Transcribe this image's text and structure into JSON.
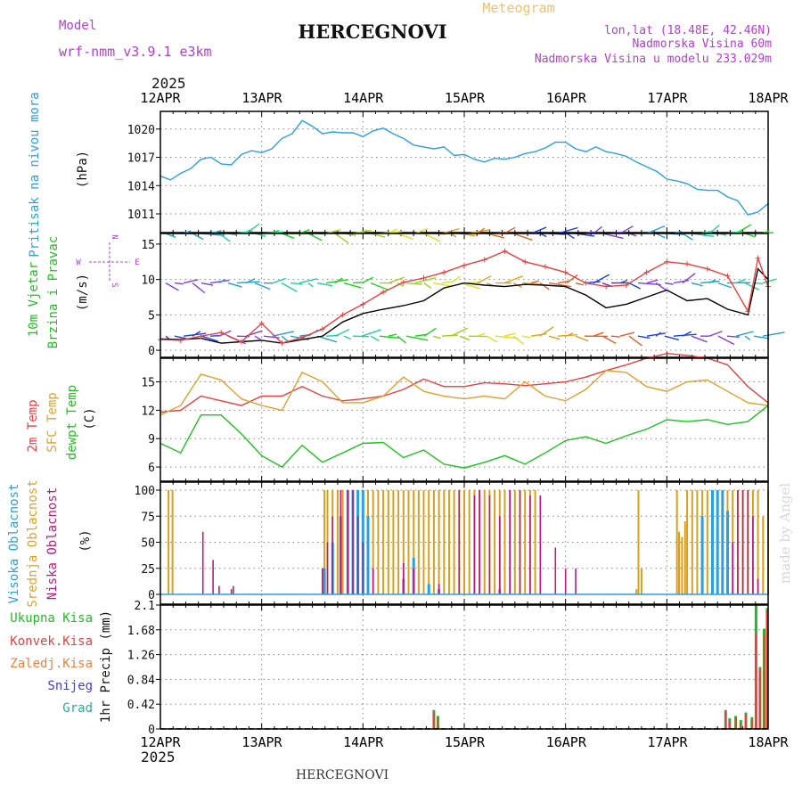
{
  "header": {
    "model_label": "Model",
    "model_name": "wrf-nmm_v3.9.1 e3km",
    "title": "HERCEGNOVI",
    "meteogram": "Meteogram",
    "lonlat": "lon,lat (18.48E, 42.46N)",
    "elevation": "Nadmorska Visina 60m",
    "model_elevation": "Nadmorska Visina u modelu 233.029m",
    "bottom_title": "HERCEGNOVI",
    "watermark": "made by Angel",
    "year_top": "2025",
    "year_bottom": "2025"
  },
  "colors": {
    "pressure": "#2aa0e0",
    "t2m": "#e84040",
    "sfc": "#e0a030",
    "dew": "#20c020",
    "high_cloud": "#2aa0e0",
    "mid_cloud": "#d8a020",
    "low_cloud": "#c01880",
    "total_precip": "#30b030",
    "conv_precip": "#e84040",
    "frozen": "#f08040",
    "snow": "#4040d0",
    "grad": "#20b0a0",
    "wind_speed": "#000000",
    "gust": "#e84040",
    "label_purple": "#b040d0",
    "meteogram_orange": "#f0c070"
  },
  "chart_data": [
    {
      "type": "line",
      "id": "pressure",
      "ylabel_lines": [
        "Pritisak na nivou mora",
        "(hPa)"
      ],
      "x_labels": [
        "12APR",
        "13APR",
        "14APR",
        "15APR",
        "16APR",
        "17APR",
        "18APR"
      ],
      "x_range": [
        0,
        6
      ],
      "ylim": [
        1009.3,
        1021.4
      ],
      "yticks": [
        1011,
        1014,
        1017,
        1020
      ],
      "series": [
        {
          "name": "Pritisak",
          "x": [
            0,
            0.1,
            0.2,
            0.3,
            0.4,
            0.5,
            0.6,
            0.7,
            0.8,
            0.9,
            1.0,
            1.1,
            1.2,
            1.3,
            1.4,
            1.5,
            1.6,
            1.7,
            1.8,
            1.9,
            2.0,
            2.1,
            2.2,
            2.3,
            2.4,
            2.5,
            2.6,
            2.7,
            2.8,
            2.9,
            3.0,
            3.1,
            3.2,
            3.3,
            3.4,
            3.5,
            3.6,
            3.7,
            3.8,
            3.9,
            4.0,
            4.1,
            4.2,
            4.3,
            4.4,
            4.5,
            4.6,
            4.7,
            4.8,
            4.9,
            5.0,
            5.1,
            5.2,
            5.3,
            5.4,
            5.5,
            5.6,
            5.7,
            5.8,
            5.9,
            6.0
          ],
          "values": [
            1015.0,
            1014.6,
            1015.3,
            1015.8,
            1016.8,
            1017.0,
            1016.3,
            1016.2,
            1017.3,
            1017.7,
            1017.5,
            1017.9,
            1019.0,
            1019.5,
            1020.9,
            1020.3,
            1019.5,
            1019.7,
            1019.6,
            1019.6,
            1019.2,
            1019.8,
            1020.1,
            1019.5,
            1019.0,
            1018.3,
            1018.1,
            1017.9,
            1018.1,
            1017.2,
            1017.3,
            1016.8,
            1016.5,
            1016.9,
            1016.8,
            1017.0,
            1017.4,
            1017.6,
            1018.0,
            1018.6,
            1018.6,
            1017.9,
            1017.6,
            1018.1,
            1017.6,
            1017.4,
            1017.1,
            1016.5,
            1016.0,
            1015.5,
            1014.7,
            1014.5,
            1014.2,
            1013.6,
            1013.5,
            1013.5,
            1012.8,
            1012.4,
            1010.9,
            1011.2,
            1012.1
          ]
        }
      ]
    },
    {
      "type": "line",
      "id": "wind",
      "ylabel_lines": [
        "10m Vjetar",
        "Brzina i Pravac",
        "(m/s)"
      ],
      "compass": {
        "n": "N",
        "s": "S",
        "w": "W",
        "e": "E"
      },
      "x_range": [
        0,
        6
      ],
      "ylim": [
        -1,
        16.5
      ],
      "yticks": [
        0,
        5,
        10,
        15
      ],
      "arrow_rows": [
        2,
        9.5,
        16.5
      ],
      "series": [
        {
          "name": "Brzina",
          "x": [
            0,
            0.2,
            0.4,
            0.6,
            0.8,
            1.0,
            1.2,
            1.4,
            1.6,
            1.8,
            2.0,
            2.2,
            2.4,
            2.6,
            2.8,
            3.0,
            3.2,
            3.4,
            3.6,
            3.8,
            4.0,
            4.2,
            4.4,
            4.6,
            4.8,
            5.0,
            5.2,
            5.4,
            5.6,
            5.8,
            5.9,
            6.0
          ],
          "values": [
            1.6,
            1.5,
            1.7,
            1.0,
            1.2,
            1.4,
            1.0,
            1.5,
            2.0,
            4.0,
            5.2,
            5.8,
            6.3,
            7.0,
            8.8,
            9.5,
            9.2,
            9.0,
            9.3,
            9.2,
            9.0,
            7.8,
            6.0,
            6.5,
            7.5,
            8.5,
            7.0,
            7.3,
            5.8,
            5.0,
            11.5,
            10.0
          ]
        },
        {
          "name": "Udari",
          "x": [
            0,
            0.2,
            0.4,
            0.6,
            0.8,
            1.0,
            1.2,
            1.4,
            1.6,
            1.8,
            2.0,
            2.2,
            2.4,
            2.6,
            2.8,
            3.0,
            3.2,
            3.4,
            3.6,
            3.8,
            4.0,
            4.2,
            4.4,
            4.6,
            4.8,
            5.0,
            5.2,
            5.4,
            5.6,
            5.8,
            5.9,
            6.0
          ],
          "values": [
            1.5,
            1.4,
            2.0,
            2.5,
            1.2,
            3.8,
            1.0,
            1.8,
            3.0,
            5.0,
            6.5,
            8.2,
            9.6,
            10.2,
            11.0,
            12.0,
            12.8,
            14.0,
            12.5,
            11.8,
            11.0,
            9.5,
            9.0,
            9.2,
            11.0,
            12.5,
            12.2,
            11.5,
            10.5,
            5.5,
            13.0,
            9.0
          ]
        }
      ]
    },
    {
      "type": "line",
      "id": "temperature",
      "ylabel_lines": [
        "2m Temp",
        "SFC Temp",
        "dewpt Temp",
        "(C)"
      ],
      "x_range": [
        0,
        6
      ],
      "ylim": [
        4.5,
        17.5
      ],
      "yticks": [
        6,
        9,
        12,
        15
      ],
      "series": [
        {
          "name": "2m Temp",
          "x": [
            0,
            0.2,
            0.4,
            0.6,
            0.8,
            1.0,
            1.2,
            1.4,
            1.6,
            1.8,
            2.0,
            2.2,
            2.4,
            2.6,
            2.8,
            3.0,
            3.2,
            3.4,
            3.6,
            3.8,
            4.0,
            4.2,
            4.4,
            4.6,
            4.8,
            5.0,
            5.2,
            5.4,
            5.6,
            5.8,
            6.0
          ],
          "values": [
            11.8,
            12.0,
            13.5,
            13.0,
            12.5,
            13.5,
            13.5,
            14.5,
            13.5,
            13.0,
            13.2,
            13.5,
            14.2,
            15.3,
            14.5,
            14.5,
            14.9,
            14.8,
            14.6,
            14.8,
            15.0,
            15.5,
            16.2,
            16.8,
            17.5,
            18.0,
            17.8,
            17.5,
            16.8,
            14.5,
            12.8
          ]
        },
        {
          "name": "SFC Temp",
          "x": [
            0,
            0.2,
            0.4,
            0.6,
            0.8,
            1.0,
            1.2,
            1.4,
            1.6,
            1.8,
            2.0,
            2.2,
            2.4,
            2.6,
            2.8,
            3.0,
            3.2,
            3.4,
            3.6,
            3.8,
            4.0,
            4.2,
            4.4,
            4.6,
            4.8,
            5.0,
            5.2,
            5.4,
            5.6,
            5.8,
            6.0
          ],
          "values": [
            11.5,
            12.5,
            15.8,
            15.2,
            13.2,
            12.5,
            12.0,
            16.0,
            15.0,
            12.8,
            12.8,
            13.5,
            15.5,
            14.0,
            13.5,
            13.2,
            13.5,
            13.2,
            15.0,
            13.5,
            13.0,
            14.2,
            16.2,
            16.0,
            14.5,
            14.0,
            15.0,
            15.2,
            14.0,
            12.8,
            12.5
          ]
        },
        {
          "name": "dewpt Temp",
          "x": [
            0,
            0.2,
            0.4,
            0.6,
            0.8,
            1.0,
            1.2,
            1.4,
            1.6,
            1.8,
            2.0,
            2.2,
            2.4,
            2.6,
            2.8,
            3.0,
            3.2,
            3.4,
            3.6,
            3.8,
            4.0,
            4.2,
            4.4,
            4.6,
            4.8,
            5.0,
            5.2,
            5.4,
            5.6,
            5.8,
            6.0
          ],
          "values": [
            8.5,
            7.5,
            11.5,
            11.5,
            9.5,
            7.2,
            6.0,
            8.3,
            6.5,
            7.5,
            8.5,
            8.6,
            7.0,
            7.8,
            6.3,
            5.9,
            6.5,
            7.2,
            6.3,
            7.5,
            8.8,
            9.2,
            8.5,
            9.3,
            10.0,
            11.0,
            10.8,
            11.0,
            10.5,
            10.8,
            12.5
          ]
        }
      ]
    },
    {
      "type": "bar",
      "id": "clouds",
      "ylabel_lines": [
        "Visoka Oblacnost",
        "Srednja Oblacnost",
        "Niska Oblacnost",
        "(%)"
      ],
      "x_range": [
        0,
        6
      ],
      "ylim": [
        0,
        100
      ],
      "yticks": [
        0,
        25,
        50,
        75,
        100
      ],
      "series": [
        {
          "name": "Srednja",
          "x": [
            0.08,
            0.12,
            1.6,
            1.62,
            1.65,
            1.7,
            1.75,
            1.8,
            1.85,
            1.9,
            1.95,
            2.0,
            2.05,
            2.1,
            2.15,
            2.2,
            2.25,
            2.3,
            2.35,
            2.4,
            2.45,
            2.5,
            2.55,
            2.6,
            2.65,
            2.7,
            2.75,
            2.8,
            2.85,
            2.9,
            2.95,
            3.0,
            3.05,
            3.1,
            3.15,
            3.2,
            3.25,
            3.3,
            3.35,
            3.4,
            3.45,
            3.5,
            3.55,
            3.6,
            3.65,
            3.7,
            4.7,
            4.72,
            4.75,
            5.1,
            5.12,
            5.15,
            5.18,
            5.2,
            5.25,
            5.3,
            5.35,
            5.4,
            5.45,
            5.5,
            5.55,
            5.6,
            5.65,
            5.7,
            5.75,
            5.8,
            5.85,
            5.9,
            5.95,
            6.0
          ],
          "values": [
            100,
            100,
            25,
            100,
            100,
            100,
            100,
            100,
            100,
            100,
            100,
            100,
            100,
            100,
            100,
            100,
            100,
            100,
            100,
            100,
            100,
            100,
            100,
            100,
            100,
            100,
            100,
            100,
            100,
            100,
            100,
            100,
            100,
            100,
            100,
            100,
            100,
            100,
            100,
            100,
            100,
            100,
            100,
            100,
            100,
            100,
            5,
            100,
            25,
            100,
            60,
            55,
            70,
            100,
            100,
            100,
            100,
            100,
            100,
            100,
            100,
            100,
            100,
            100,
            100,
            100,
            100,
            100,
            75,
            100
          ]
        },
        {
          "name": "Visoka",
          "x": [
            1.62,
            1.7,
            1.78,
            1.85,
            1.9,
            1.95,
            2.0,
            2.05,
            2.4,
            2.5,
            2.65,
            2.75,
            3.35,
            5.35,
            5.45,
            5.5,
            5.55,
            5.6
          ],
          "values": [
            25,
            50,
            75,
            100,
            100,
            100,
            100,
            75,
            15,
            35,
            10,
            5,
            5,
            75,
            100,
            100,
            100,
            80
          ]
        },
        {
          "name": "Niska",
          "x": [
            0.42,
            0.52,
            0.58,
            0.7,
            0.72,
            1.6,
            1.65,
            1.7,
            1.78,
            1.85,
            1.9,
            1.95,
            2.0,
            2.1,
            2.4,
            2.5,
            2.75,
            2.95,
            3.1,
            3.15,
            3.25,
            3.35,
            3.45,
            3.55,
            3.65,
            3.75,
            3.9,
            4.0,
            4.1,
            5.65,
            5.7,
            5.75,
            5.8,
            5.85,
            5.9
          ],
          "values": [
            60,
            33,
            8,
            5,
            8,
            25,
            50,
            75,
            100,
            100,
            100,
            75,
            50,
            25,
            30,
            25,
            10,
            100,
            95,
            100,
            95,
            75,
            100,
            100,
            95,
            95,
            45,
            25,
            25,
            50,
            100,
            100,
            100,
            75,
            15
          ]
        }
      ]
    },
    {
      "type": "bar",
      "id": "precip",
      "ylabel_lines": [
        "1hr Precip (mm)"
      ],
      "legend": [
        "Ukupna Kisa",
        "Konvek.Kisa",
        "Zaledj.Kisa",
        "Snijeg",
        "Grad"
      ],
      "x_range": [
        0,
        6
      ],
      "ylim": [
        0,
        2.1
      ],
      "yticks": [
        0,
        0.42,
        0.84,
        1.26,
        1.68,
        2.1
      ],
      "series": [
        {
          "name": "Ukupna Kisa",
          "x": [
            2.7,
            2.74,
            5.58,
            5.62,
            5.68,
            5.73,
            5.78,
            5.84,
            5.88,
            5.92,
            5.96,
            5.99
          ],
          "values": [
            0.32,
            0.22,
            0.32,
            0.18,
            0.22,
            0.15,
            0.28,
            0.2,
            2.1,
            1.05,
            1.7,
            2.05
          ]
        },
        {
          "name": "Konvek.Kisa",
          "x": [
            2.7,
            2.74,
            5.58,
            5.62,
            5.68,
            5.73,
            5.78,
            5.84,
            5.88,
            5.92,
            5.96,
            5.99
          ],
          "values": [
            0.28,
            0.18,
            0.3,
            0.12,
            0.2,
            0.1,
            0.25,
            0.15,
            1.6,
            1.0,
            1.6,
            2.0
          ]
        }
      ]
    }
  ]
}
